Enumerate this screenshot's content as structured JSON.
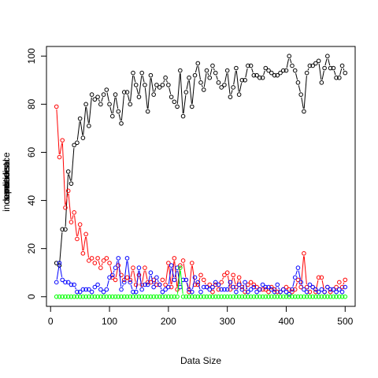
{
  "chart_data": {
    "type": "line",
    "title": "",
    "xlabel": "Data Size",
    "ylabel_overlaid": [
      "independence",
      "conditional",
      "samedist",
      "none"
    ],
    "xlim": [
      -7,
      517
    ],
    "ylim": [
      -4,
      104
    ],
    "xticks": [
      0,
      100,
      200,
      300,
      400,
      500
    ],
    "yticks": [
      0,
      20,
      40,
      60,
      80,
      100
    ],
    "grid": false,
    "legend": "none",
    "x": [
      10,
      15,
      20,
      25,
      30,
      35,
      40,
      45,
      50,
      55,
      60,
      65,
      70,
      75,
      80,
      85,
      90,
      95,
      100,
      105,
      110,
      115,
      120,
      125,
      130,
      135,
      140,
      145,
      150,
      155,
      160,
      165,
      170,
      175,
      180,
      185,
      190,
      195,
      200,
      205,
      210,
      215,
      220,
      225,
      230,
      235,
      240,
      245,
      250,
      255,
      260,
      265,
      270,
      275,
      280,
      285,
      290,
      295,
      300,
      305,
      310,
      315,
      320,
      325,
      330,
      335,
      340,
      345,
      350,
      355,
      360,
      365,
      370,
      375,
      380,
      385,
      390,
      395,
      400,
      405,
      410,
      415,
      420,
      425,
      430,
      435,
      440,
      445,
      450,
      455,
      460,
      465,
      470,
      475,
      480,
      485,
      490,
      495,
      500
    ],
    "series": [
      {
        "color": "#000000",
        "values": [
          14,
          13,
          28,
          28,
          52,
          47,
          63,
          64,
          74,
          66,
          80,
          71,
          84,
          82,
          83,
          80,
          84,
          86,
          80,
          75,
          84,
          77,
          72,
          85,
          85,
          80,
          93,
          88,
          83,
          93,
          88,
          77,
          92,
          84,
          88,
          87,
          88,
          91,
          88,
          83,
          81,
          79,
          94,
          75,
          85,
          91,
          79,
          92,
          97,
          89,
          86,
          94,
          91,
          96,
          93,
          89,
          87,
          88,
          94,
          83,
          87,
          95,
          84,
          90,
          90,
          96,
          96,
          92,
          92,
          91,
          91,
          95,
          94,
          93,
          92,
          92,
          93,
          94,
          94,
          100,
          96,
          94,
          89,
          84,
          77,
          93,
          96,
          96,
          97,
          98,
          89,
          95,
          100,
          95,
          95,
          91,
          91,
          96,
          93
        ]
      },
      {
        "color": "#ff0000",
        "values": [
          79,
          58,
          65,
          37,
          44,
          31,
          35,
          24,
          30,
          18,
          26,
          15,
          16,
          14,
          16,
          12,
          15,
          16,
          14,
          8,
          7,
          13,
          9,
          7,
          8,
          7,
          12,
          5,
          9,
          5,
          12,
          6,
          6,
          7,
          5,
          5,
          7,
          5,
          14,
          4,
          16,
          3,
          13,
          15,
          7,
          2,
          14,
          5,
          5,
          9,
          7,
          4,
          5,
          2,
          5,
          3,
          6,
          9,
          10,
          3,
          9,
          4,
          8,
          4,
          2,
          5,
          6,
          5,
          4,
          3,
          3,
          3,
          2,
          4,
          3,
          2,
          2,
          3,
          4,
          3,
          2,
          3,
          7,
          4,
          18,
          4,
          2,
          4,
          2,
          8,
          8,
          2,
          4,
          2,
          3,
          4,
          6,
          4,
          7
        ]
      },
      {
        "color": "#0000ff",
        "values": [
          6,
          14,
          7,
          6,
          6,
          5,
          5,
          2,
          2,
          3,
          3,
          3,
          2,
          4,
          5,
          3,
          2,
          3,
          8,
          9,
          12,
          16,
          3,
          6,
          16,
          6,
          2,
          2,
          12,
          3,
          5,
          5,
          10,
          4,
          8,
          5,
          2,
          3,
          4,
          13,
          7,
          12,
          4,
          7,
          7,
          3,
          2,
          8,
          6,
          2,
          4,
          4,
          3,
          4,
          6,
          5,
          3,
          3,
          3,
          6,
          4,
          2,
          5,
          3,
          6,
          2,
          3,
          4,
          2,
          3,
          5,
          4,
          4,
          3,
          2,
          5,
          2,
          3,
          2,
          1,
          3,
          8,
          12,
          6,
          3,
          2,
          5,
          4,
          3,
          2,
          3,
          2,
          4,
          3,
          3,
          2,
          3,
          2,
          4
        ]
      },
      {
        "color": "#00ff00",
        "values": [
          0,
          0,
          0,
          0,
          0,
          0,
          0,
          0,
          0,
          0,
          0,
          0,
          0,
          0,
          0,
          0,
          0,
          0,
          0,
          0,
          0,
          0,
          0,
          0,
          0,
          0,
          0,
          0,
          0,
          0,
          0,
          0,
          0,
          0,
          0,
          0,
          0,
          0,
          0,
          0,
          0,
          0,
          12,
          0,
          0,
          0,
          0,
          0,
          0,
          0,
          0,
          0,
          0,
          0,
          0,
          0,
          0,
          0,
          0,
          0,
          0,
          0,
          0,
          0,
          0,
          0,
          0,
          0,
          0,
          0,
          0,
          0,
          0,
          0,
          0,
          0,
          0,
          0,
          0,
          0,
          0,
          0,
          0,
          0,
          0,
          0,
          0,
          0,
          0,
          0,
          0,
          0,
          0,
          0,
          0,
          0,
          0,
          0,
          0
        ]
      }
    ]
  }
}
